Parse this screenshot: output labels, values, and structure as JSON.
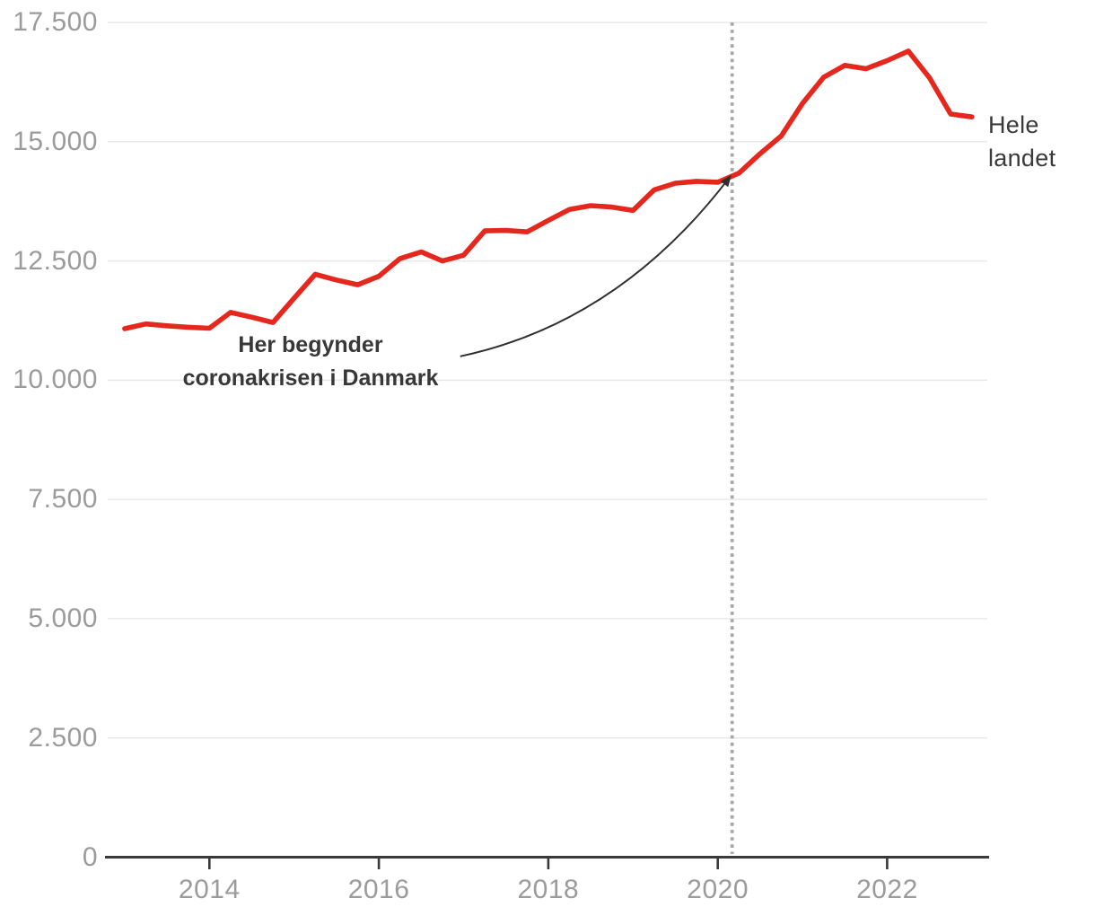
{
  "chart_data": {
    "type": "line",
    "title": "",
    "xlabel": "",
    "ylabel": "",
    "xlim": [
      2012.8,
      2023.15
    ],
    "ylim": [
      0,
      17500
    ],
    "grid": "horizontal",
    "legend_position": "right-of-line-end",
    "x_ticks": [
      2014,
      2016,
      2018,
      2020,
      2022
    ],
    "x_tick_labels": [
      "2014",
      "2016",
      "2018",
      "2020",
      "2022"
    ],
    "y_ticks": [
      0,
      2500,
      5000,
      7500,
      10000,
      12500,
      15000,
      17500
    ],
    "y_tick_labels": [
      "0",
      "2.500",
      "5.000",
      "7.500",
      "10.000",
      "12.500",
      "15.000",
      "17.500"
    ],
    "series": [
      {
        "name": "Hele landet",
        "color": "#e5271d",
        "x": [
          2013.0,
          2013.25,
          2013.5,
          2013.75,
          2014.0,
          2014.25,
          2014.5,
          2014.75,
          2015.0,
          2015.25,
          2015.5,
          2015.75,
          2016.0,
          2016.25,
          2016.5,
          2016.75,
          2017.0,
          2017.25,
          2017.5,
          2017.75,
          2018.0,
          2018.25,
          2018.5,
          2018.75,
          2019.0,
          2019.25,
          2019.5,
          2019.75,
          2020.0,
          2020.25,
          2020.5,
          2020.75,
          2021.0,
          2021.25,
          2021.5,
          2021.75,
          2022.0,
          2022.25,
          2022.5,
          2022.75,
          2023.0
        ],
        "values": [
          11080,
          11180,
          11140,
          11110,
          11090,
          11420,
          11320,
          11210,
          11720,
          12220,
          12100,
          12000,
          12180,
          12550,
          12690,
          12500,
          12620,
          13130,
          13140,
          13110,
          13350,
          13580,
          13660,
          13630,
          13560,
          13990,
          14130,
          14170,
          14150,
          14340,
          14750,
          15120,
          15800,
          16350,
          16600,
          16530,
          16700,
          16900,
          16340,
          15580,
          15520
        ]
      }
    ],
    "vline": {
      "x": 2020.17,
      "style": "dotted",
      "color": "#a8a8a8"
    },
    "annotation": {
      "line1": "Her begynder",
      "line2": "coronakrisen i Danmark",
      "arrow_from_x": 2016.96,
      "arrow_from_y": 10500,
      "arrow_to_x": 2020.13,
      "arrow_to_y": 14230
    },
    "series_label": {
      "line1": "Hele",
      "line2": "landet"
    },
    "colors": {
      "series": "#e5271d",
      "grid": "#e9e9e9",
      "axis": "#3a3a3a",
      "tick_labels": "#9b9b9b",
      "annotation": "#2f2f2f",
      "vline": "#a8a8a8",
      "background": "#ffffff"
    }
  }
}
